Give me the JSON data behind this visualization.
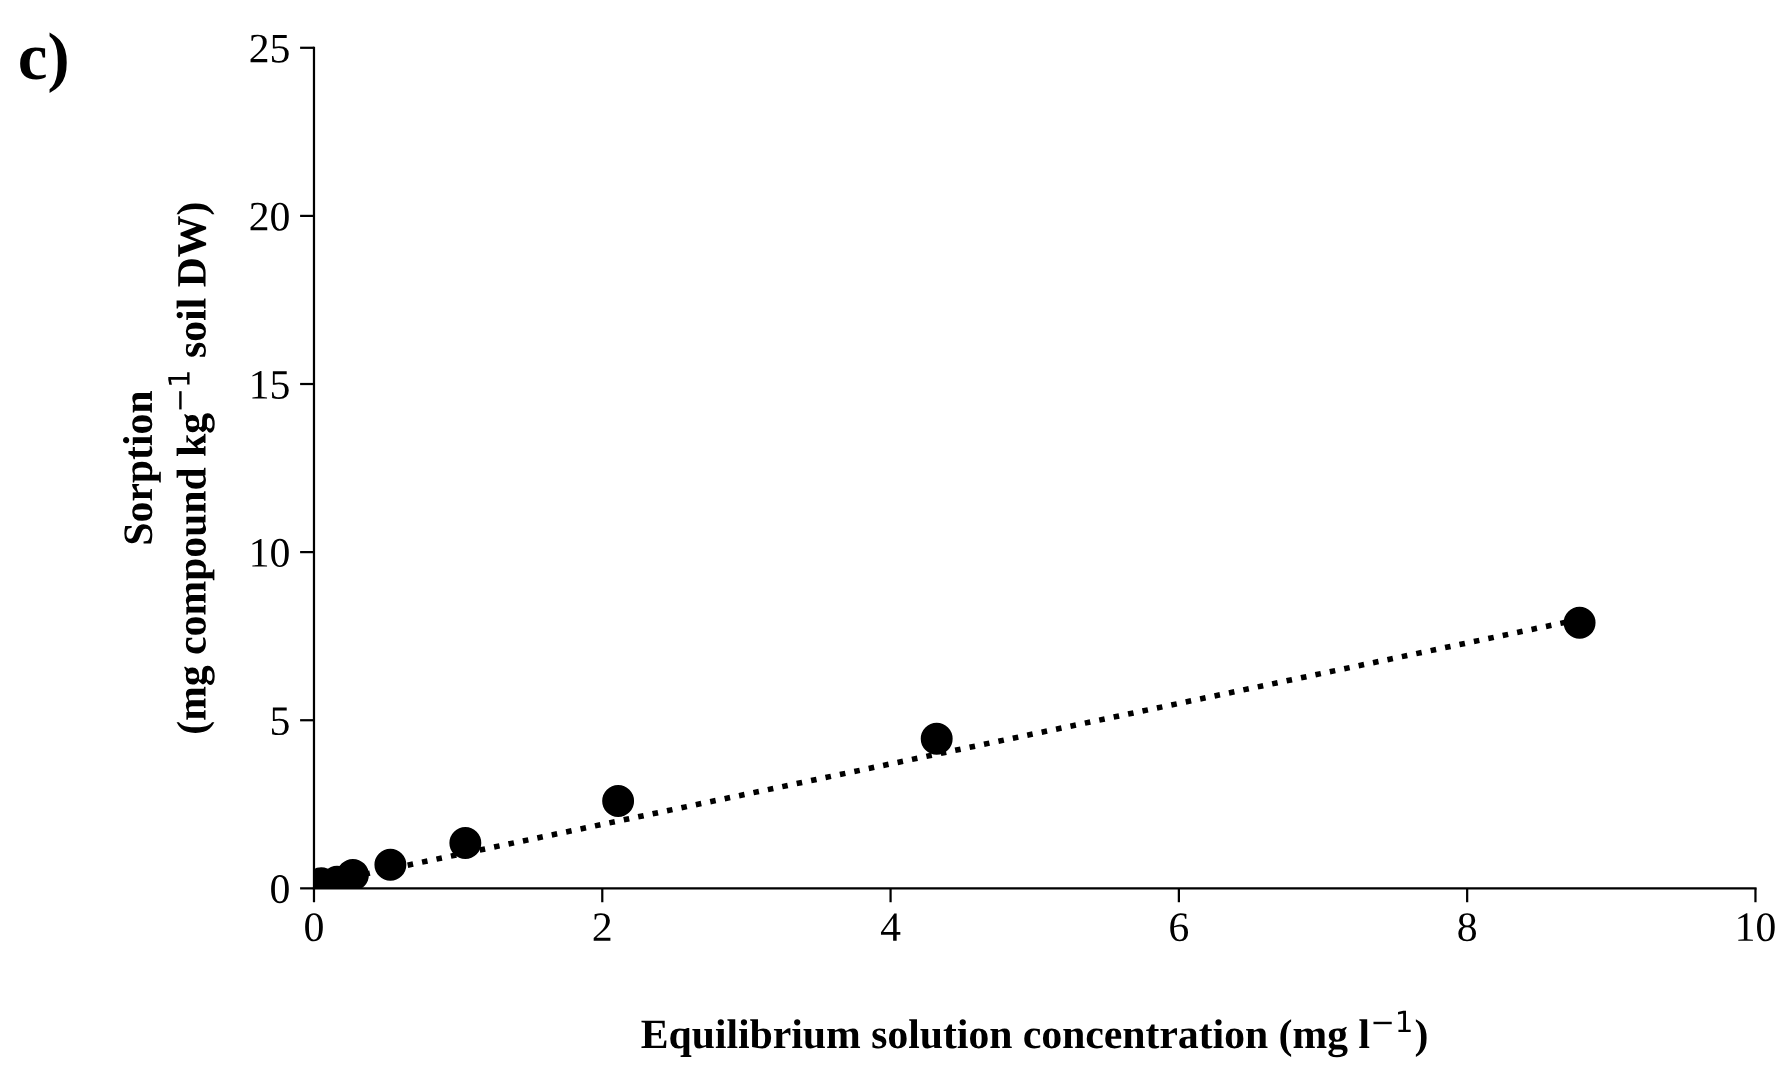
{
  "chart_data": {
    "type": "scatter",
    "title": "c)",
    "xlabel": "Equilibrium solution concentration (mg l$^{−1}$)",
    "ylabel": "Sorption\n(mg compound kg$^{−1}$ soil DW)",
    "x": [
      0.05,
      0.16,
      0.27,
      0.53,
      1.05,
      2.11,
      4.32,
      8.78
    ],
    "series": [
      {
        "color": "#000000",
        "marker": "circle",
        "values": [
          0.15,
          0.2,
          0.4,
          0.7,
          1.35,
          2.6,
          4.45,
          7.9
        ]
      },
      {
        "type": "line",
        "color": "#000000",
        "line_style": "dotted",
        "x": [
          0.05,
          8.78
        ],
        "values": [
          0.15,
          8.0
        ]
      }
    ],
    "xlim": [
      0,
      10
    ],
    "xticks": [
      0,
      2,
      4,
      6,
      8,
      10
    ],
    "ylim": [
      0,
      25
    ],
    "yticks": [
      0,
      5,
      10,
      15,
      20,
      25
    ],
    "grid": false,
    "legend": false
  }
}
